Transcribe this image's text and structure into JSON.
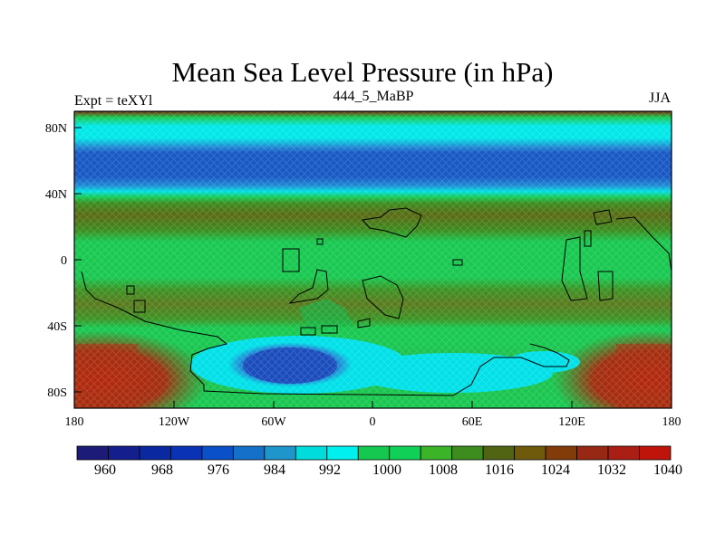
{
  "header": {
    "title": "Mean Sea Level Pressure (in hPa)",
    "left": "Expt = teXYl",
    "center": "444_5_MaBP",
    "right": "JJA"
  },
  "axes": {
    "x_ticks": [
      "180",
      "120W",
      "60W",
      "0",
      "60E",
      "120E",
      "180"
    ],
    "y_ticks": [
      "80N",
      "40N",
      "0",
      "40S",
      "80S"
    ]
  },
  "colorbar": {
    "labels": [
      "960",
      "968",
      "976",
      "984",
      "992",
      "1000",
      "1008",
      "1016",
      "1024",
      "1032",
      "1040"
    ],
    "colors": [
      "#1c1c78",
      "#141e8c",
      "#0a28a0",
      "#0a32b4",
      "#0a50c8",
      "#1470c8",
      "#1e96cc",
      "#00dcdc",
      "#00f0f0",
      "#14c850",
      "#10d058",
      "#3cb428",
      "#3c8c1e",
      "#506414",
      "#6e5a0a",
      "#823c0a",
      "#962814",
      "#aa1e14",
      "#be140a"
    ]
  },
  "map": {
    "lon_range": [
      -180,
      180
    ],
    "lat_range": [
      -90,
      90
    ],
    "colors": {
      "deep_blue": "#1a50c0",
      "mid_blue": "#1f7ad0",
      "cyan": "#00e0e8",
      "green": "#18c850",
      "olive": "#5a7a1e",
      "brown": "#7a4a10",
      "red": "#c0280a",
      "dark_red": "#8a2a0a"
    }
  }
}
